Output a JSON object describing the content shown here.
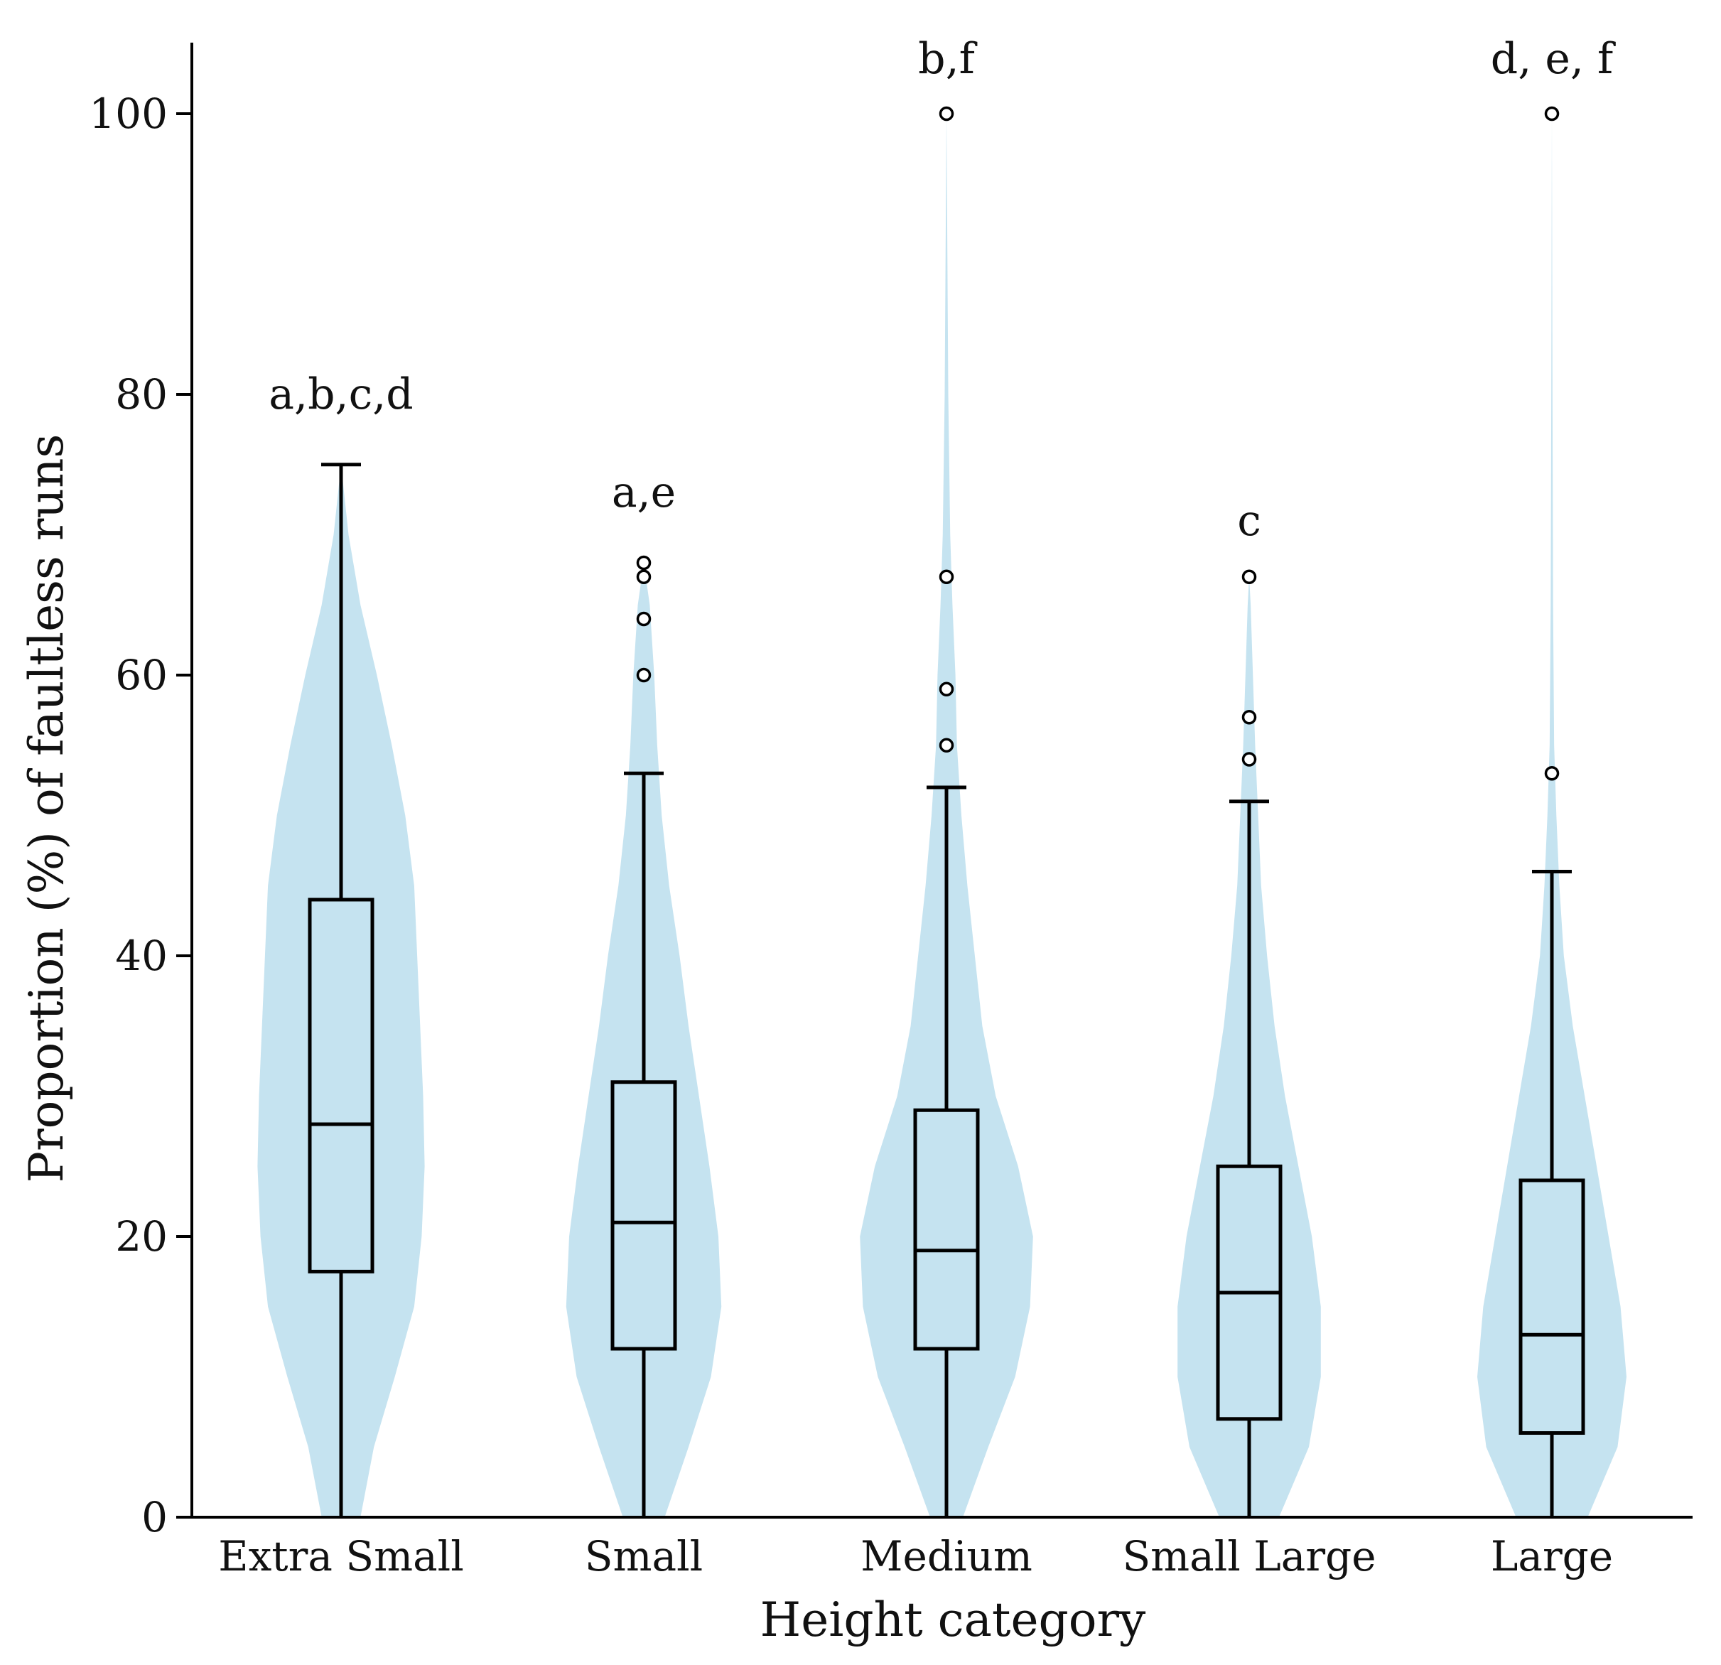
{
  "chart_data": {
    "type": "violin-box",
    "title": "",
    "xlabel": "Height category",
    "ylabel": "Proportion (%) of faultless runs",
    "ylim": [
      0,
      105
    ],
    "yticks": [
      0,
      20,
      40,
      60,
      80,
      100
    ],
    "ytick_labels": [
      "0",
      "20",
      "40",
      "60",
      "80",
      "100"
    ],
    "violin_color": "#c5e3f0",
    "box_color": "#000000",
    "categories": [
      "Extra Small",
      "Small",
      "Medium",
      "Small Large",
      "Large"
    ],
    "groups": [
      {
        "name": "Extra Small",
        "significance": "a,b,c,d",
        "whisker_low": 0,
        "q1": 17.5,
        "median": 28,
        "q3": 44,
        "whisker_high": 75,
        "outliers": [],
        "density": [
          [
            0,
            0.13
          ],
          [
            5,
            0.22
          ],
          [
            10,
            0.36
          ],
          [
            15,
            0.49
          ],
          [
            20,
            0.54
          ],
          [
            25,
            0.56
          ],
          [
            30,
            0.55
          ],
          [
            35,
            0.53
          ],
          [
            40,
            0.51
          ],
          [
            45,
            0.49
          ],
          [
            50,
            0.43
          ],
          [
            55,
            0.34
          ],
          [
            60,
            0.24
          ],
          [
            65,
            0.13
          ],
          [
            70,
            0.05
          ],
          [
            75,
            0
          ]
        ]
      },
      {
        "name": "Small",
        "significance": "a,e",
        "whisker_low": 0,
        "q1": 12,
        "median": 21,
        "q3": 31,
        "whisker_high": 53,
        "outliers": [
          60,
          64,
          67,
          68
        ],
        "density": [
          [
            0,
            0.14
          ],
          [
            5,
            0.3
          ],
          [
            10,
            0.45
          ],
          [
            15,
            0.52
          ],
          [
            20,
            0.5
          ],
          [
            25,
            0.44
          ],
          [
            30,
            0.37
          ],
          [
            35,
            0.3
          ],
          [
            40,
            0.24
          ],
          [
            45,
            0.17
          ],
          [
            50,
            0.12
          ],
          [
            55,
            0.09
          ],
          [
            60,
            0.07
          ],
          [
            65,
            0.04
          ],
          [
            68,
            0
          ]
        ]
      },
      {
        "name": "Medium",
        "significance": "b,f",
        "whisker_low": 0,
        "q1": 12,
        "median": 19,
        "q3": 29,
        "whisker_high": 52,
        "outliers": [
          55,
          59,
          67,
          100
        ],
        "density": [
          [
            0,
            0.11
          ],
          [
            5,
            0.28
          ],
          [
            10,
            0.46
          ],
          [
            15,
            0.56
          ],
          [
            20,
            0.58
          ],
          [
            25,
            0.48
          ],
          [
            30,
            0.33
          ],
          [
            35,
            0.24
          ],
          [
            40,
            0.19
          ],
          [
            45,
            0.14
          ],
          [
            50,
            0.1
          ],
          [
            55,
            0.07
          ],
          [
            60,
            0.06
          ],
          [
            65,
            0.04
          ],
          [
            70,
            0.025
          ],
          [
            80,
            0.012
          ],
          [
            90,
            0.006
          ],
          [
            100,
            0
          ]
        ]
      },
      {
        "name": "Small Large",
        "significance": "c",
        "whisker_low": 0,
        "q1": 7,
        "median": 16,
        "q3": 25,
        "whisker_high": 51,
        "outliers": [
          54,
          57,
          67
        ],
        "density": [
          [
            0,
            0.2
          ],
          [
            5,
            0.4
          ],
          [
            10,
            0.48
          ],
          [
            15,
            0.48
          ],
          [
            20,
            0.42
          ],
          [
            25,
            0.33
          ],
          [
            30,
            0.24
          ],
          [
            35,
            0.17
          ],
          [
            40,
            0.12
          ],
          [
            45,
            0.08
          ],
          [
            50,
            0.06
          ],
          [
            55,
            0.04
          ],
          [
            60,
            0.025
          ],
          [
            65,
            0.01
          ],
          [
            67,
            0
          ]
        ]
      },
      {
        "name": "Large",
        "significance": "d, e, f",
        "whisker_low": 0,
        "q1": 6,
        "median": 13,
        "q3": 24,
        "whisker_high": 46,
        "outliers": [
          53,
          100
        ],
        "density": [
          [
            0,
            0.24
          ],
          [
            5,
            0.44
          ],
          [
            10,
            0.5
          ],
          [
            15,
            0.46
          ],
          [
            20,
            0.38
          ],
          [
            25,
            0.3
          ],
          [
            30,
            0.22
          ],
          [
            35,
            0.14
          ],
          [
            40,
            0.08
          ],
          [
            45,
            0.05
          ],
          [
            50,
            0.03
          ],
          [
            55,
            0.015
          ],
          [
            65,
            0.008
          ],
          [
            80,
            0.004
          ],
          [
            100,
            0
          ]
        ]
      }
    ]
  }
}
